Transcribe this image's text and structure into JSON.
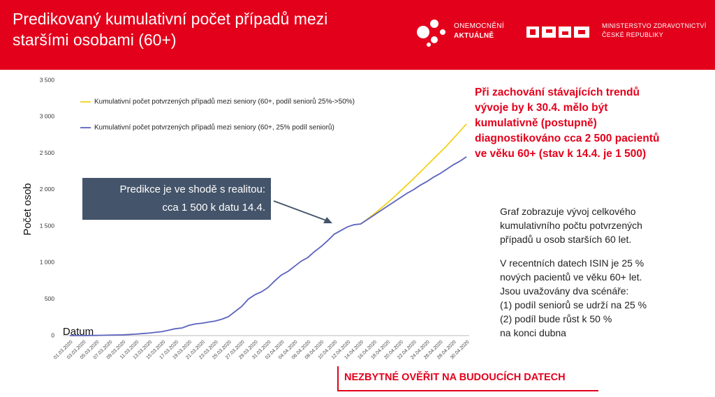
{
  "header": {
    "title_lines": [
      "Predikovaný kumulativní počet případů mezi",
      "staršími osobami (60+)"
    ],
    "logo1": [
      "ONEMOCNĚNÍ",
      "AKTUÁLNĚ"
    ],
    "logo2": [
      "MINISTERSTVO ZDRAVOTNICTVÍ",
      "ČESKÉ REPUBLIKY"
    ]
  },
  "chart_data": {
    "type": "line",
    "y_label": "Počet osob",
    "x_label": "Datum",
    "annotation": [
      "Predikce je ve shodě s realitou:",
      "cca 1 500 k datu 14.4."
    ],
    "categories": [
      "01.03.2020",
      null,
      "03.03.2020",
      null,
      "05.03.2020",
      null,
      "07.03.2020",
      null,
      "09.03.2020",
      null,
      "11.03.2020",
      null,
      "13.03.2020",
      null,
      "15.03.2020",
      null,
      "17.03.2020",
      null,
      "19.03.2020",
      null,
      "21.03.2020",
      null,
      "23.03.2020",
      null,
      "25.03.2020",
      null,
      "27.03.2020",
      null,
      "29.03.2020",
      null,
      "31.03.2020",
      null,
      "02.04.2020",
      null,
      "04.04.2020",
      null,
      "06.04.2020",
      null,
      "08.04.2020",
      null,
      "10.04.2020",
      null,
      "12.04.2020",
      null,
      "14.04.2020",
      null,
      "16.04.2020",
      null,
      "18.04.2020",
      null,
      "20.04.2020",
      null,
      "22.04.2020",
      null,
      "24.04.2020",
      null,
      "26.04.2020",
      null,
      "28.04.2020",
      null,
      "30.04.2020"
    ],
    "series": [
      {
        "name": "Kumulativní počet potvrzených případů mezi seniory (60+, podíl seniorů 25%->50%)",
        "color": "#f2d31b",
        "values": [
          null,
          null,
          null,
          null,
          null,
          null,
          null,
          null,
          null,
          null,
          null,
          null,
          null,
          null,
          null,
          null,
          null,
          null,
          null,
          null,
          null,
          null,
          null,
          null,
          null,
          null,
          null,
          null,
          null,
          null,
          null,
          null,
          null,
          null,
          null,
          null,
          null,
          null,
          null,
          null,
          null,
          null,
          null,
          null,
          1530,
          1595,
          1665,
          1740,
          1815,
          1895,
          1980,
          2065,
          2150,
          2240,
          2330,
          2420,
          2510,
          2600,
          2700,
          2800,
          2900
        ]
      },
      {
        "name": "Kumulativní počet potvrzených případů mezi seniory (60+, 25% podíl seniorů)",
        "color": "#5b63bd",
        "values": [
          0,
          0,
          0,
          2,
          3,
          5,
          7,
          8,
          10,
          15,
          20,
          28,
          35,
          45,
          55,
          75,
          95,
          105,
          140,
          160,
          170,
          185,
          200,
          225,
          260,
          330,
          400,
          500,
          560,
          600,
          660,
          750,
          830,
          880,
          950,
          1020,
          1070,
          1150,
          1220,
          1300,
          1390,
          1440,
          1490,
          1520,
          1530,
          1590,
          1650,
          1710,
          1770,
          1830,
          1890,
          1950,
          2000,
          2060,
          2110,
          2170,
          2220,
          2280,
          2340,
          2390,
          2450
        ]
      }
    ],
    "ylim": [
      0,
      3500
    ],
    "yticks": [
      0,
      500,
      {
        "value": 1000,
        "label": "1 000"
      },
      {
        "value": 1500,
        "label": "1 500"
      },
      {
        "value": 2000,
        "label": "2 000"
      },
      {
        "value": 2500,
        "label": "2 500"
      },
      {
        "value": 3000,
        "label": "3 000"
      },
      {
        "value": 3500,
        "label": "3 500"
      }
    ],
    "grid": false,
    "legend": "top-left"
  },
  "right_text": {
    "highlight": [
      "Při zachování stávajících trendů",
      "vývoje by k 30.4. mělo být",
      "kumulativně (postupně)",
      "diagnostikováno cca 2 500 pacientů",
      "ve věku 60+ (stav k 14.4. je 1 500)"
    ],
    "para1": [
      "Graf zobrazuje vývoj celkového",
      "kumulativního počtu potvrzených",
      "případů u osob starších 60 let."
    ],
    "para2": [
      "V recentních datech ISIN je 25 %",
      "nových pacientů ve věku 60+ let.",
      "Jsou uvažovány dva scénáře:",
      "(1) podíl seniorů se udrží na 25 %",
      "(2) podíl bude růst k 50 %",
      "na konci dubna"
    ]
  },
  "footer": "NEZBYTNÉ OVĚŘIT NA BUDOUCÍCH DATECH"
}
